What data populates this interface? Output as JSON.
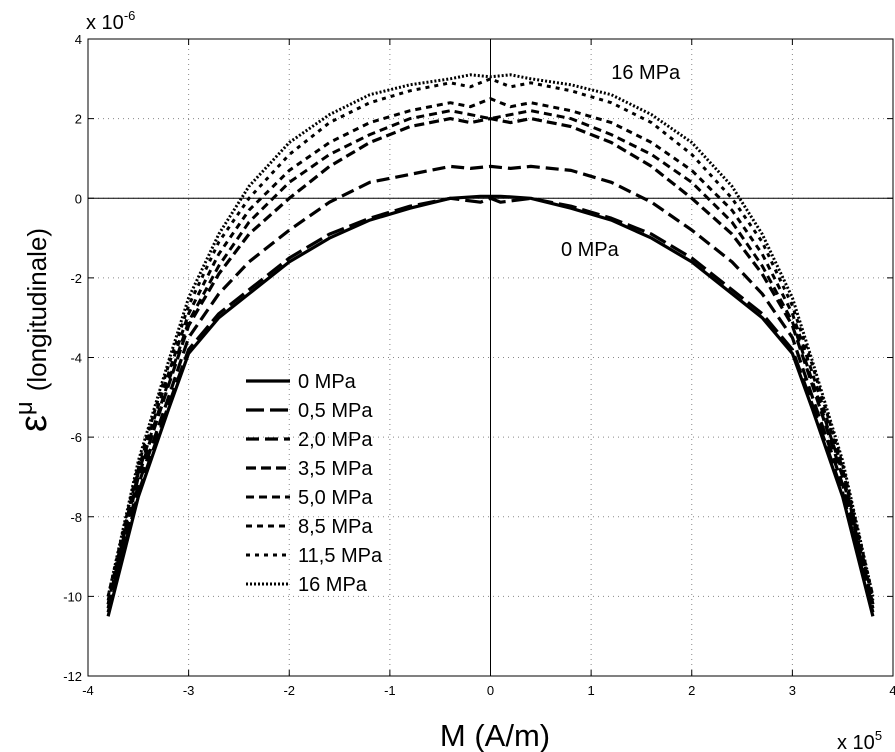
{
  "chart_data": {
    "type": "line",
    "xlabel": "M (A/m)",
    "ylabel_symbol": "ε",
    "ylabel_superscript": "μ",
    "ylabel_text": "(longitudinale)",
    "x_multiplier": "x 10",
    "x_multiplier_exp": "5",
    "y_multiplier": "x 10",
    "y_multiplier_exp": "-6",
    "xlim": [
      -4,
      4
    ],
    "ylim": [
      -12,
      4
    ],
    "xticks": [
      "-4",
      "-3",
      "-2",
      "-1",
      "0",
      "1",
      "2",
      "3",
      "4"
    ],
    "yticks": [
      "-12",
      "-10",
      "-8",
      "-6",
      "-4",
      "-2",
      "0",
      "2",
      "4"
    ],
    "grid": true,
    "legend_position": "lower-left",
    "annotations": [
      {
        "text": "16 MPa",
        "x": 1.2,
        "y": 3.0
      },
      {
        "text": "0  MPa",
        "x": 0.7,
        "y": -1.45
      }
    ],
    "series": [
      {
        "name": "0  MPa",
        "dash": "solid",
        "width": 3.2,
        "x": [
          -3.8,
          -3.5,
          -3.2,
          -3.0,
          -2.7,
          -2.4,
          -2.0,
          -1.6,
          -1.2,
          -0.8,
          -0.4,
          -0.1,
          0.0,
          0.1,
          0.4,
          0.8,
          1.2,
          1.6,
          2.0,
          2.4,
          2.7,
          3.0,
          3.2,
          3.5,
          3.8
        ],
        "y": [
          -10.5,
          -7.5,
          -5.3,
          -3.9,
          -3.0,
          -2.4,
          -1.6,
          -1.0,
          -0.55,
          -0.25,
          0.0,
          0.05,
          0.05,
          0.05,
          0.0,
          -0.25,
          -0.55,
          -1.0,
          -1.6,
          -2.4,
          -3.0,
          -3.9,
          -5.3,
          -7.5,
          -10.5
        ]
      },
      {
        "name": "0,5 MPa",
        "dash": "18,6",
        "width": 3.2,
        "x": [
          -3.8,
          -3.5,
          -3.2,
          -3.0,
          -2.7,
          -2.4,
          -2.0,
          -1.6,
          -1.2,
          -0.8,
          -0.4,
          -0.1,
          0.0,
          0.1,
          0.4,
          0.8,
          1.2,
          1.6,
          2.0,
          2.4,
          2.7,
          3.0,
          3.2,
          3.5,
          3.8
        ],
        "y": [
          -10.4,
          -7.4,
          -5.2,
          -3.8,
          -2.9,
          -2.3,
          -1.5,
          -0.9,
          -0.5,
          -0.2,
          0.0,
          -0.1,
          0.0,
          -0.1,
          0.0,
          -0.2,
          -0.5,
          -0.9,
          -1.5,
          -2.3,
          -2.9,
          -3.8,
          -5.2,
          -7.4,
          -10.4
        ]
      },
      {
        "name": "2,0 MPa",
        "dash": "13,6",
        "width": 3.2,
        "x": [
          -3.8,
          -3.5,
          -3.2,
          -3.0,
          -2.7,
          -2.4,
          -2.0,
          -1.6,
          -1.2,
          -0.8,
          -0.4,
          -0.2,
          0.0,
          0.2,
          0.4,
          0.8,
          1.2,
          1.6,
          2.0,
          2.4,
          2.7,
          3.0,
          3.2,
          3.5,
          3.8
        ],
        "y": [
          -10.3,
          -7.2,
          -5.0,
          -3.5,
          -2.4,
          -1.6,
          -0.8,
          -0.1,
          0.4,
          0.6,
          0.8,
          0.75,
          0.8,
          0.75,
          0.8,
          0.7,
          0.4,
          -0.1,
          -0.8,
          -1.6,
          -2.4,
          -3.5,
          -5.0,
          -7.2,
          -10.3
        ]
      },
      {
        "name": "3,5 MPa",
        "dash": "10,5",
        "width": 3.2,
        "x": [
          -3.8,
          -3.5,
          -3.2,
          -3.0,
          -2.7,
          -2.4,
          -2.0,
          -1.6,
          -1.2,
          -0.8,
          -0.4,
          -0.2,
          0.0,
          0.2,
          0.4,
          0.8,
          1.2,
          1.6,
          2.0,
          2.4,
          2.7,
          3.0,
          3.2,
          3.5,
          3.8
        ],
        "y": [
          -10.2,
          -7.0,
          -4.7,
          -3.2,
          -1.9,
          -0.9,
          0.0,
          0.8,
          1.4,
          1.8,
          2.0,
          1.9,
          2.0,
          1.9,
          2.0,
          1.8,
          1.4,
          0.8,
          0.0,
          -0.9,
          -1.9,
          -3.2,
          -4.7,
          -7.0,
          -10.2
        ]
      },
      {
        "name": "5,0 MPa",
        "dash": "8,5",
        "width": 3.0,
        "x": [
          -3.8,
          -3.5,
          -3.2,
          -3.0,
          -2.7,
          -2.4,
          -2.0,
          -1.6,
          -1.2,
          -0.8,
          -0.4,
          -0.2,
          0.0,
          0.2,
          0.4,
          0.8,
          1.2,
          1.6,
          2.0,
          2.4,
          2.7,
          3.0,
          3.2,
          3.5,
          3.8
        ],
        "y": [
          -10.2,
          -6.9,
          -4.6,
          -3.1,
          -1.7,
          -0.6,
          0.4,
          1.1,
          1.6,
          2.0,
          2.2,
          2.1,
          2.0,
          2.1,
          2.2,
          2.0,
          1.6,
          1.1,
          0.4,
          -0.6,
          -1.7,
          -3.1,
          -4.6,
          -6.9,
          -10.2
        ]
      },
      {
        "name": "8,5 MPa",
        "dash": "6,5",
        "width": 3.0,
        "x": [
          -3.8,
          -3.5,
          -3.2,
          -3.0,
          -2.7,
          -2.4,
          -2.0,
          -1.6,
          -1.2,
          -0.8,
          -0.4,
          -0.2,
          0.0,
          0.2,
          0.4,
          0.8,
          1.2,
          1.6,
          2.0,
          2.4,
          2.7,
          3.0,
          3.2,
          3.5,
          3.8
        ],
        "y": [
          -10.1,
          -6.8,
          -4.4,
          -2.9,
          -1.4,
          -0.3,
          0.7,
          1.4,
          1.9,
          2.2,
          2.4,
          2.3,
          2.5,
          2.3,
          2.4,
          2.2,
          1.9,
          1.4,
          0.7,
          -0.3,
          -1.4,
          -2.9,
          -4.4,
          -6.8,
          -10.1
        ]
      },
      {
        "name": "11,5 MPa",
        "dash": "4,5",
        "width": 3.0,
        "x": [
          -3.8,
          -3.5,
          -3.2,
          -3.0,
          -2.7,
          -2.4,
          -2.0,
          -1.6,
          -1.2,
          -0.8,
          -0.4,
          -0.2,
          0.0,
          0.2,
          0.4,
          0.8,
          1.2,
          1.6,
          2.0,
          2.4,
          2.7,
          3.0,
          3.2,
          3.5,
          3.8
        ],
        "y": [
          -10.0,
          -6.7,
          -4.2,
          -2.7,
          -1.1,
          0.0,
          1.1,
          1.9,
          2.4,
          2.7,
          2.9,
          2.8,
          3.0,
          2.8,
          2.9,
          2.7,
          2.4,
          1.9,
          1.1,
          0.0,
          -1.1,
          -2.7,
          -4.2,
          -6.7,
          -10.0
        ]
      },
      {
        "name": "16 MPa",
        "dash": "2,2",
        "width": 3.0,
        "x": [
          -3.8,
          -3.5,
          -3.2,
          -3.0,
          -2.7,
          -2.4,
          -2.0,
          -1.6,
          -1.2,
          -0.8,
          -0.4,
          -0.2,
          0.0,
          0.2,
          0.4,
          0.8,
          1.2,
          1.6,
          2.0,
          2.4,
          2.7,
          3.0,
          3.2,
          3.5,
          3.8
        ],
        "y": [
          -10.0,
          -6.6,
          -4.1,
          -2.5,
          -0.9,
          0.3,
          1.4,
          2.1,
          2.6,
          2.85,
          3.0,
          3.1,
          3.05,
          3.1,
          3.0,
          2.85,
          2.6,
          2.1,
          1.4,
          0.3,
          -0.9,
          -2.5,
          -4.1,
          -6.6,
          -10.0
        ]
      }
    ]
  }
}
